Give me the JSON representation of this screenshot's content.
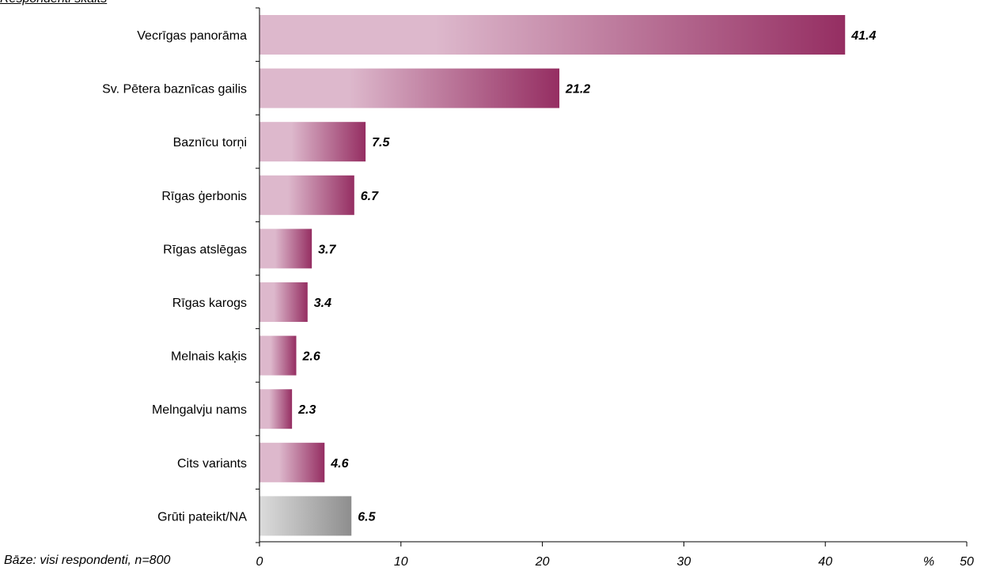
{
  "header_note": "Respondenti skaits",
  "base_note": "Bāze: visi respondenti, n=800",
  "colors": {
    "bar_light": "#ddb8cc",
    "bar_dark": "#952e62",
    "na_light": "#dcdcdc",
    "na_dark": "#8e8e8e",
    "axis": "#000000"
  },
  "chart_data": {
    "type": "bar",
    "orientation": "horizontal",
    "categories": [
      "Vecrīgas panorāma",
      "Sv. Pētera baznīcas gailis",
      "Baznīcu torņi",
      "Rīgas ģerbonis",
      "Rīgas atslēgas",
      "Rīgas karogs",
      "Melnais kaķis",
      "Melngalvju nams",
      "Cits variants",
      "Grūti pateikt/NA"
    ],
    "values": [
      41.4,
      21.2,
      7.5,
      6.7,
      3.7,
      3.4,
      2.6,
      2.3,
      4.6,
      6.5
    ],
    "value_labels": [
      "41.4",
      "21.2",
      "7.5",
      "6.7",
      "3.7",
      "3.4",
      "2.6",
      "2.3",
      "4.6",
      "6.5"
    ],
    "x_ticks": [
      "0",
      "10",
      "20",
      "30",
      "40",
      "50"
    ],
    "xlim": [
      0,
      50
    ],
    "x_unit": "%",
    "grid": false,
    "legend": "none"
  }
}
